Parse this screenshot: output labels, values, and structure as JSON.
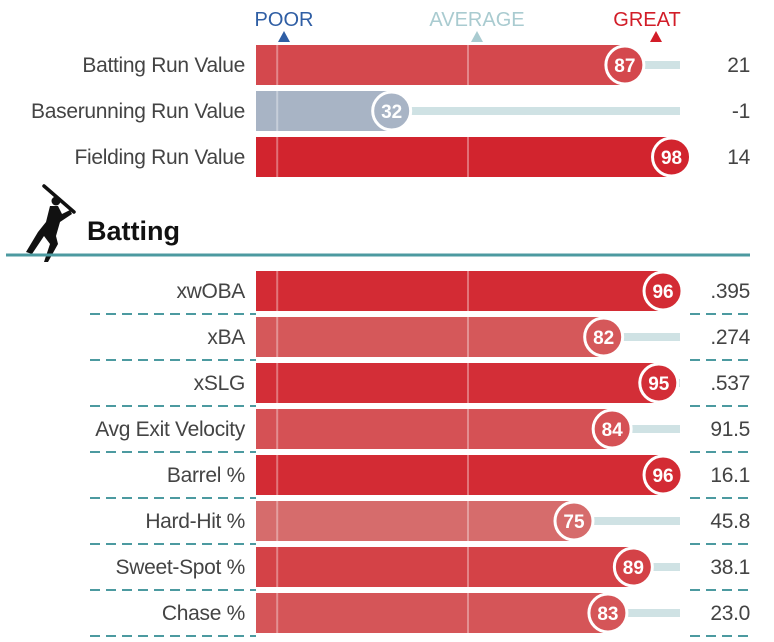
{
  "scale": {
    "poor_label": "POOR",
    "average_label": "AVERAGE",
    "great_label": "GREAT",
    "poor_color": "#2f5ea4",
    "average_color": "#a9cbd0",
    "great_color": "#d21d28"
  },
  "section": {
    "title": "Batting",
    "icon": "batter-silhouette-icon",
    "rule_color": "#4c9aa0"
  },
  "chart_data": {
    "type": "bar",
    "xlim": [
      0,
      100
    ],
    "groups": [
      {
        "name": "",
        "rows": [
          {
            "label": "Batting Run Value",
            "percentile": 87,
            "value": "21"
          },
          {
            "label": "Baserunning Run Value",
            "percentile": 32,
            "value": "-1"
          },
          {
            "label": "Fielding Run Value",
            "percentile": 98,
            "value": "14"
          }
        ]
      },
      {
        "name": "Batting",
        "rows": [
          {
            "label": "xwOBA",
            "percentile": 96,
            "value": ".395"
          },
          {
            "label": "xBA",
            "percentile": 82,
            "value": ".274"
          },
          {
            "label": "xSLG",
            "percentile": 95,
            "value": ".537"
          },
          {
            "label": "Avg Exit Velocity",
            "percentile": 84,
            "value": "91.5"
          },
          {
            "label": "Barrel %",
            "percentile": 96,
            "value": "16.1"
          },
          {
            "label": "Hard-Hit %",
            "percentile": 75,
            "value": "45.8"
          },
          {
            "label": "Sweet-Spot %",
            "percentile": 89,
            "value": "38.1"
          },
          {
            "label": "Chase %",
            "percentile": 83,
            "value": "23.0"
          }
        ]
      }
    ]
  }
}
